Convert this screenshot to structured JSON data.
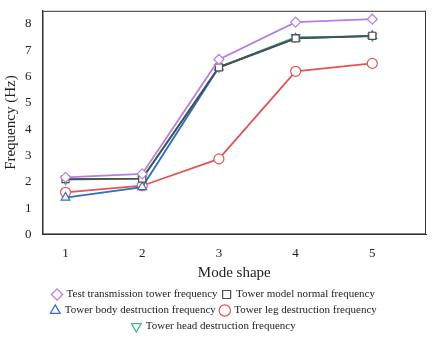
{
  "chart_data": {
    "type": "line",
    "x_label": "Mode shape",
    "y_label": "Frequency (Hz)",
    "x": [
      1,
      2,
      3,
      4,
      5
    ],
    "series": [
      {
        "name": "Test transmission tower frequency",
        "color": "#b57fe0",
        "marker": "diamond",
        "values": [
          2.17,
          2.3,
          6.65,
          8.07,
          8.18
        ]
      },
      {
        "name": "Tower model normal frequency",
        "color": "#4d4d4d",
        "marker": "square",
        "values": [
          2.1,
          2.12,
          6.35,
          7.45,
          7.55
        ]
      },
      {
        "name": "Tower body destruction frequency",
        "color": "#2a6fc9",
        "marker": "triangle",
        "values": [
          1.4,
          1.8,
          6.35,
          7.45,
          7.55
        ]
      },
      {
        "name": "Tower leg destruction frequency",
        "color": "#e05555",
        "marker": "circle",
        "values": [
          1.6,
          1.85,
          2.87,
          6.2,
          6.5
        ]
      },
      {
        "name": "Tower head destruction frequency",
        "color": "#3cb886",
        "marker": "triangle_down",
        "values": [
          2.08,
          2.12,
          6.35,
          7.5,
          7.53
        ]
      }
    ],
    "xlim": [
      0.7,
      5.7
    ],
    "xticks": [
      1,
      2,
      3,
      4,
      5
    ],
    "ylim": [
      0,
      8.5
    ],
    "yticks": [
      0,
      1,
      2,
      3,
      4,
      5,
      6,
      7,
      8
    ],
    "grid": false,
    "legend": "bottom"
  }
}
